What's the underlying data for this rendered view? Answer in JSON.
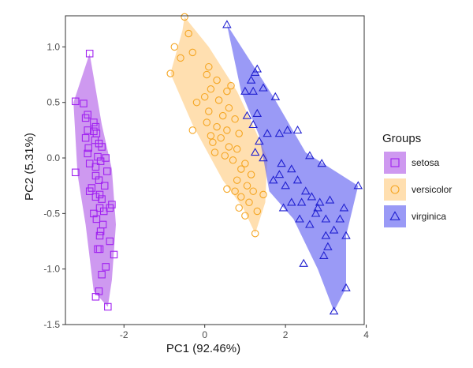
{
  "chart_data": {
    "type": "scatter",
    "title": "",
    "xlabel": "PC1 (92.46%)",
    "ylabel": "PC2 (5.31%)",
    "xlim": [
      -3.45,
      3.95
    ],
    "ylim": [
      -1.5,
      1.28
    ],
    "xticks": [
      -2,
      0,
      2,
      4
    ],
    "yticks": [
      -1.5,
      -1.0,
      -0.5,
      0.0,
      0.5,
      1.0
    ],
    "xtick_labels": [
      "-2",
      "0",
      "2",
      "4"
    ],
    "ytick_labels": [
      "-1.5",
      "-1.0",
      "-0.5",
      "0.0",
      "0.5",
      "1.0"
    ],
    "grid": false,
    "legend": {
      "title": "Groups",
      "position": "right",
      "entries": [
        "setosa",
        "versicolor",
        "virginica"
      ]
    },
    "series": [
      {
        "name": "setosa",
        "marker": "square",
        "stroke_color": "#A020F0",
        "fill_color": "#B05BE6",
        "hull": [
          [
            -2.85,
            0.94
          ],
          [
            -2.55,
            0.3
          ],
          [
            -2.3,
            -0.1
          ],
          [
            -2.2,
            -0.6
          ],
          [
            -2.3,
            -1.1
          ],
          [
            -2.4,
            -1.34
          ],
          [
            -2.75,
            -1.2
          ],
          [
            -2.95,
            -0.6
          ],
          [
            -3.15,
            -0.15
          ],
          [
            -3.25,
            0.5
          ]
        ],
        "points": [
          [
            -2.85,
            0.94
          ],
          [
            -3.2,
            0.51
          ],
          [
            -3.0,
            0.49
          ],
          [
            -2.9,
            0.39
          ],
          [
            -2.95,
            0.36
          ],
          [
            -2.75,
            0.32
          ],
          [
            -2.7,
            0.28
          ],
          [
            -2.9,
            0.25
          ],
          [
            -2.75,
            0.24
          ],
          [
            -2.68,
            0.22
          ],
          [
            -2.95,
            0.18
          ],
          [
            -2.72,
            0.16
          ],
          [
            -2.62,
            0.13
          ],
          [
            -2.55,
            0.1
          ],
          [
            -2.88,
            0.09
          ],
          [
            -2.9,
            0.04
          ],
          [
            -2.65,
            0.01
          ],
          [
            -2.45,
            0.0
          ],
          [
            -2.58,
            -0.03
          ],
          [
            -2.85,
            -0.05
          ],
          [
            -2.7,
            -0.08
          ],
          [
            -3.2,
            -0.13
          ],
          [
            -2.42,
            -0.12
          ],
          [
            -2.7,
            -0.16
          ],
          [
            -2.62,
            -0.2
          ],
          [
            -2.48,
            -0.25
          ],
          [
            -2.8,
            -0.27
          ],
          [
            -2.85,
            -0.3
          ],
          [
            -2.6,
            -0.33
          ],
          [
            -2.7,
            -0.35
          ],
          [
            -2.55,
            -0.37
          ],
          [
            -2.3,
            -0.42
          ],
          [
            -2.35,
            -0.45
          ],
          [
            -2.6,
            -0.45
          ],
          [
            -2.5,
            -0.48
          ],
          [
            -2.75,
            -0.5
          ],
          [
            -2.68,
            -0.55
          ],
          [
            -2.52,
            -0.6
          ],
          [
            -2.58,
            -0.66
          ],
          [
            -2.6,
            -0.7
          ],
          [
            -2.35,
            -0.75
          ],
          [
            -2.6,
            -0.82
          ],
          [
            -2.65,
            -0.82
          ],
          [
            -2.25,
            -0.87
          ],
          [
            -2.45,
            -0.98
          ],
          [
            -2.55,
            -1.05
          ],
          [
            -2.62,
            -1.2
          ],
          [
            -2.7,
            -1.25
          ],
          [
            -2.4,
            -1.34
          ]
        ]
      },
      {
        "name": "versicolor",
        "marker": "circle",
        "stroke_color": "#F5A623",
        "fill_color": "#FFCC80",
        "hull": [
          [
            -0.5,
            1.27
          ],
          [
            0.1,
            1.0
          ],
          [
            0.8,
            0.6
          ],
          [
            1.25,
            0.25
          ],
          [
            1.55,
            0.0
          ],
          [
            1.5,
            -0.4
          ],
          [
            1.25,
            -0.68
          ],
          [
            0.95,
            -0.45
          ],
          [
            0.45,
            -0.2
          ],
          [
            -0.3,
            0.3
          ],
          [
            -0.85,
            0.76
          ],
          [
            -0.55,
            1.15
          ]
        ],
        "points": [
          [
            -0.5,
            1.27
          ],
          [
            -0.4,
            1.12
          ],
          [
            -0.75,
            1.0
          ],
          [
            -0.3,
            0.95
          ],
          [
            -0.6,
            0.9
          ],
          [
            0.1,
            0.82
          ],
          [
            0.05,
            0.75
          ],
          [
            -0.85,
            0.76
          ],
          [
            0.3,
            0.7
          ],
          [
            0.15,
            0.62
          ],
          [
            0.55,
            0.6
          ],
          [
            0.0,
            0.55
          ],
          [
            0.35,
            0.52
          ],
          [
            0.6,
            0.45
          ],
          [
            0.1,
            0.42
          ],
          [
            0.45,
            0.38
          ],
          [
            0.75,
            0.35
          ],
          [
            0.05,
            0.32
          ],
          [
            0.3,
            0.28
          ],
          [
            0.55,
            0.25
          ],
          [
            -0.3,
            0.25
          ],
          [
            0.85,
            0.22
          ],
          [
            0.15,
            0.2
          ],
          [
            0.4,
            0.18
          ],
          [
            0.2,
            0.14
          ],
          [
            0.6,
            0.1
          ],
          [
            0.8,
            0.08
          ],
          [
            0.25,
            0.05
          ],
          [
            0.5,
            0.02
          ],
          [
            0.7,
            -0.02
          ],
          [
            1.0,
            -0.05
          ],
          [
            0.9,
            -0.1
          ],
          [
            1.15,
            -0.15
          ],
          [
            0.8,
            -0.2
          ],
          [
            1.05,
            -0.25
          ],
          [
            0.55,
            -0.28
          ],
          [
            1.2,
            -0.3
          ],
          [
            1.45,
            -0.33
          ],
          [
            0.9,
            -0.35
          ],
          [
            1.1,
            -0.4
          ],
          [
            0.85,
            -0.45
          ],
          [
            1.3,
            -0.48
          ],
          [
            1.0,
            -0.52
          ],
          [
            1.25,
            -0.68
          ],
          [
            0.75,
            -0.3
          ],
          [
            -0.2,
            0.5
          ],
          [
            0.65,
            0.65
          ]
        ]
      },
      {
        "name": "virginica",
        "marker": "triangle",
        "stroke_color": "#2020D0",
        "fill_color": "#5C5CF0",
        "hull": [
          [
            0.55,
            1.2
          ],
          [
            1.7,
            0.55
          ],
          [
            2.5,
            0.05
          ],
          [
            3.8,
            -0.25
          ],
          [
            3.5,
            -0.7
          ],
          [
            3.5,
            -1.17
          ],
          [
            3.2,
            -1.38
          ],
          [
            2.8,
            -1.0
          ],
          [
            2.2,
            -0.55
          ],
          [
            1.6,
            -0.3
          ],
          [
            1.35,
            0.2
          ],
          [
            0.9,
            0.6
          ]
        ],
        "points": [
          [
            0.55,
            1.2
          ],
          [
            1.3,
            0.8
          ],
          [
            1.25,
            0.77
          ],
          [
            1.15,
            0.7
          ],
          [
            1.2,
            0.6
          ],
          [
            1.45,
            0.63
          ],
          [
            1.75,
            0.55
          ],
          [
            1.0,
            0.6
          ],
          [
            1.3,
            0.4
          ],
          [
            1.05,
            0.38
          ],
          [
            1.2,
            0.3
          ],
          [
            1.55,
            0.22
          ],
          [
            1.35,
            0.15
          ],
          [
            1.85,
            0.22
          ],
          [
            2.05,
            0.25
          ],
          [
            2.3,
            0.25
          ],
          [
            1.25,
            0.05
          ],
          [
            1.45,
            0.0
          ],
          [
            1.9,
            -0.05
          ],
          [
            2.15,
            -0.1
          ],
          [
            2.6,
            0.02
          ],
          [
            2.9,
            -0.05
          ],
          [
            1.7,
            -0.2
          ],
          [
            1.85,
            -0.15
          ],
          [
            2.3,
            -0.2
          ],
          [
            2.0,
            -0.25
          ],
          [
            2.5,
            -0.3
          ],
          [
            2.65,
            -0.35
          ],
          [
            2.4,
            -0.4
          ],
          [
            2.85,
            -0.4
          ],
          [
            3.1,
            -0.38
          ],
          [
            2.15,
            -0.4
          ],
          [
            1.95,
            -0.45
          ],
          [
            2.75,
            -0.5
          ],
          [
            3.45,
            -0.45
          ],
          [
            3.35,
            -0.55
          ],
          [
            3.0,
            -0.55
          ],
          [
            2.35,
            -0.55
          ],
          [
            3.2,
            -0.65
          ],
          [
            3.5,
            -0.7
          ],
          [
            3.0,
            -0.7
          ],
          [
            3.05,
            -0.8
          ],
          [
            2.95,
            -0.88
          ],
          [
            2.45,
            -0.95
          ],
          [
            3.8,
            -0.25
          ],
          [
            3.5,
            -1.17
          ],
          [
            3.2,
            -1.38
          ],
          [
            2.6,
            -0.6
          ],
          [
            2.8,
            -0.45
          ]
        ]
      }
    ]
  }
}
